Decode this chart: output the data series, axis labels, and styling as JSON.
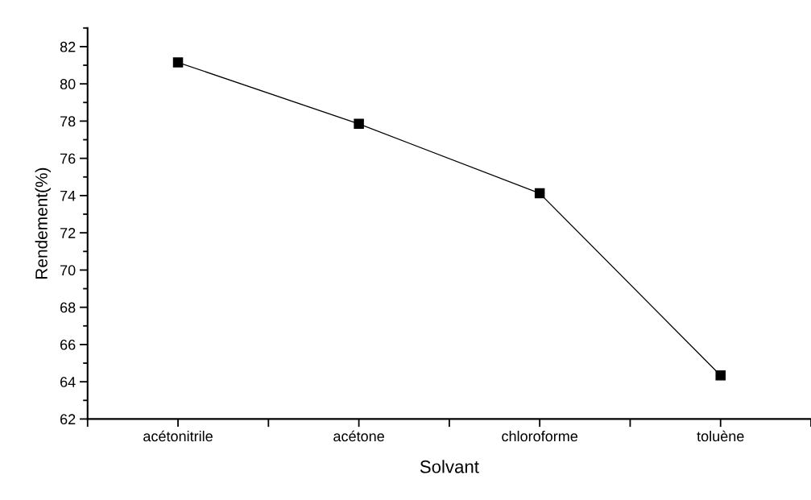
{
  "chart_data": {
    "type": "line",
    "xlabel": "Solvant",
    "ylabel": "Rendement(%)",
    "categories": [
      "acétonitrile",
      "acétone",
      "chloroforme",
      "toluène"
    ],
    "series": [
      {
        "color": "#000000",
        "values": [
          81.15,
          77.85,
          74.12,
          64.34
        ]
      }
    ],
    "ylim": [
      62,
      83
    ],
    "yticks": [
      62,
      64,
      66,
      68,
      70,
      72,
      74,
      76,
      78,
      80,
      82
    ],
    "marker": "square",
    "line_style": "solid",
    "grid": false,
    "legend": false
  }
}
